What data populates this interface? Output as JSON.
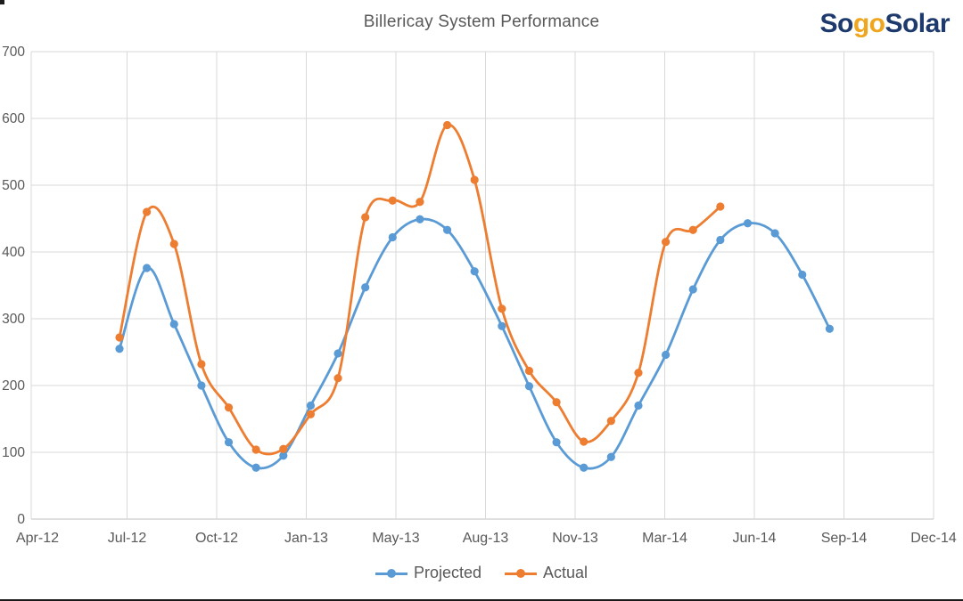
{
  "header": {
    "title": "Billericay System Performance",
    "logo": {
      "prefix": "So",
      "accent": "go",
      "suffix": "Solar"
    }
  },
  "colors": {
    "projected": "#5B9BD5",
    "actual": "#ED7D31",
    "title_text": "#595959",
    "axis_text": "#595959",
    "gridline": "#D9D9D9",
    "axis_line": "#BFBFBF",
    "logo_navy": "#1E3A6C",
    "logo_gold": "#EFA51E"
  },
  "legend": {
    "items": [
      {
        "label": "Projected",
        "color": "#5B9BD5"
      },
      {
        "label": "Actual",
        "color": "#ED7D31"
      }
    ]
  },
  "chart_data": {
    "type": "line",
    "title": "Billericay System Performance",
    "xlabel": "",
    "ylabel": "",
    "ylim": [
      0,
      700
    ],
    "y_ticks": [
      0,
      100,
      200,
      300,
      400,
      500,
      600,
      700
    ],
    "x_tick_labels": [
      "Apr-12",
      "Jul-12",
      "Oct-12",
      "Jan-13",
      "May-13",
      "Aug-13",
      "Nov-13",
      "Mar-14",
      "Jun-14",
      "Sep-14",
      "Dec-14"
    ],
    "grid": true,
    "line_style": "smooth",
    "markers": "circle",
    "legend_position": "bottom",
    "months": [
      "Jul-12",
      "Aug-12",
      "Sep-12",
      "Oct-12",
      "Nov-12",
      "Dec-12",
      "Jan-13",
      "Feb-13",
      "Mar-13",
      "Apr-13",
      "May-13",
      "Jun-13",
      "Jul-13",
      "Aug-13",
      "Sep-13",
      "Oct-13",
      "Nov-13",
      "Dec-13",
      "Jan-14",
      "Feb-14",
      "Mar-14",
      "Apr-14",
      "May-14",
      "Jun-14",
      "Jul-14",
      "Aug-14",
      "Sep-14"
    ],
    "series": [
      {
        "name": "Projected",
        "color": "#5B9BD5",
        "values": [
          255,
          376,
          292,
          200,
          115,
          77,
          95,
          170,
          248,
          347,
          422,
          449,
          433,
          371,
          289,
          199,
          115,
          77,
          93,
          170,
          246,
          344,
          418,
          443,
          428,
          366,
          285
        ]
      },
      {
        "name": "Actual",
        "color": "#ED7D31",
        "values": [
          272,
          460,
          412,
          232,
          167,
          104,
          105,
          157,
          211,
          452,
          477,
          475,
          590,
          508,
          315,
          222,
          175,
          116,
          147,
          219,
          415,
          433,
          468
        ]
      }
    ]
  }
}
